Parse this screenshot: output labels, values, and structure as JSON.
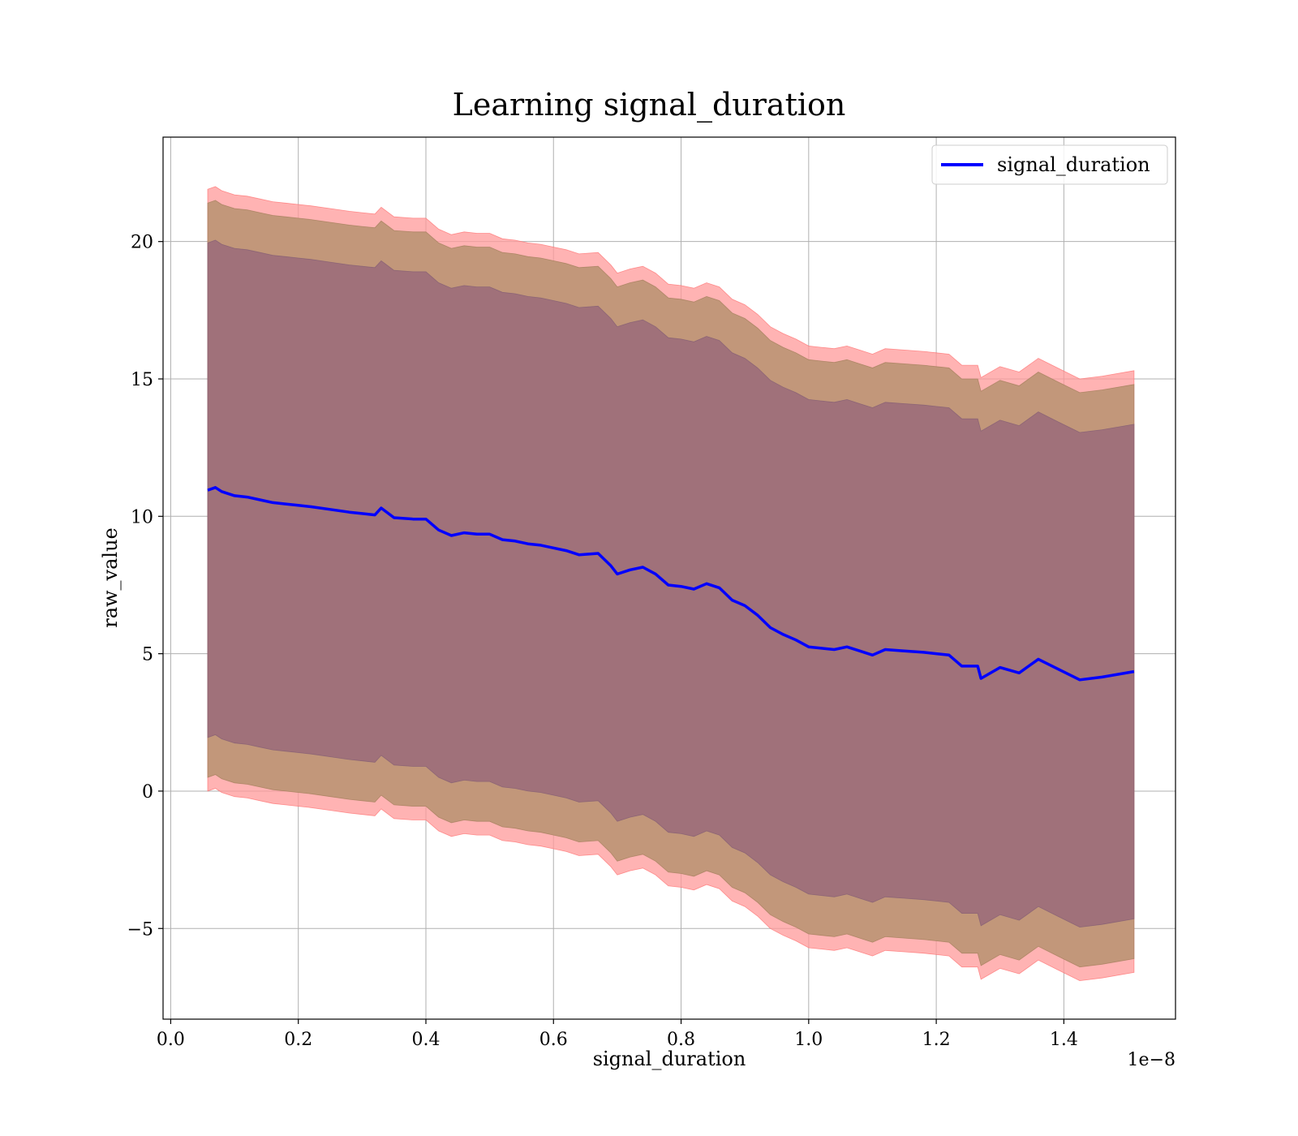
{
  "chart_data": {
    "type": "area",
    "title": "Learning signal_duration",
    "xlabel": "signal_duration",
    "ylabel": "raw_value",
    "x_offset_label": "1e−8",
    "x_scale": 1e-08,
    "xlim": [
      -0.012,
      1.575
    ],
    "ylim": [
      -8.3,
      23.8
    ],
    "x_ticks": [
      0.0,
      0.2,
      0.4,
      0.6,
      0.8,
      1.0,
      1.2,
      1.4
    ],
    "x_tick_labels": [
      "0.0",
      "0.2",
      "0.4",
      "0.6",
      "0.8",
      "1.0",
      "1.2",
      "1.4"
    ],
    "y_ticks": [
      -5,
      0,
      5,
      10,
      15,
      20
    ],
    "y_tick_labels": [
      "−5",
      "0",
      "5",
      "10",
      "15",
      "20"
    ],
    "grid": true,
    "legend": {
      "position": "top-right",
      "entries": [
        "signal_duration"
      ]
    },
    "colors": {
      "line": "#0000ff",
      "outer_band": "#ff9999",
      "middle_band": "#c2977a",
      "inner_band": "#a0717a"
    },
    "x": [
      0.058,
      0.07,
      0.08,
      0.1,
      0.12,
      0.14,
      0.16,
      0.18,
      0.2,
      0.22,
      0.25,
      0.28,
      0.3,
      0.32,
      0.33,
      0.35,
      0.38,
      0.4,
      0.42,
      0.44,
      0.46,
      0.48,
      0.5,
      0.52,
      0.54,
      0.56,
      0.58,
      0.6,
      0.62,
      0.64,
      0.67,
      0.69,
      0.7,
      0.72,
      0.74,
      0.76,
      0.78,
      0.8,
      0.82,
      0.84,
      0.86,
      0.88,
      0.9,
      0.92,
      0.94,
      0.96,
      0.98,
      1.0,
      1.02,
      1.04,
      1.06,
      1.08,
      1.1,
      1.12,
      1.15,
      1.18,
      1.2,
      1.22,
      1.24,
      1.265,
      1.27,
      1.3,
      1.33,
      1.36,
      1.39,
      1.425,
      1.46,
      1.51
    ],
    "series": [
      {
        "name": "signal_duration",
        "values": [
          10.95,
          11.05,
          10.9,
          10.75,
          10.7,
          10.6,
          10.5,
          10.45,
          10.4,
          10.35,
          10.25,
          10.15,
          10.1,
          10.05,
          10.3,
          9.95,
          9.9,
          9.9,
          9.5,
          9.3,
          9.4,
          9.35,
          9.35,
          9.15,
          9.1,
          9.0,
          8.95,
          8.85,
          8.75,
          8.6,
          8.65,
          8.2,
          7.9,
          8.05,
          8.15,
          7.9,
          7.5,
          7.45,
          7.35,
          7.55,
          7.4,
          6.95,
          6.75,
          6.4,
          5.95,
          5.7,
          5.5,
          5.25,
          5.2,
          5.15,
          5.25,
          5.1,
          4.95,
          5.15,
          5.1,
          5.05,
          5.0,
          4.95,
          4.55,
          4.55,
          4.1,
          4.5,
          4.3,
          4.8,
          4.45,
          4.05,
          4.15,
          4.35
        ]
      }
    ],
    "bands": [
      {
        "band": "outer",
        "lower_offset": -10.95,
        "upper_offset": 10.95
      },
      {
        "band": "middle",
        "lower_offset": -10.45,
        "upper_offset": 10.45
      },
      {
        "band": "inner",
        "lower_offset": -9.0,
        "upper_offset": 9.0
      }
    ]
  }
}
